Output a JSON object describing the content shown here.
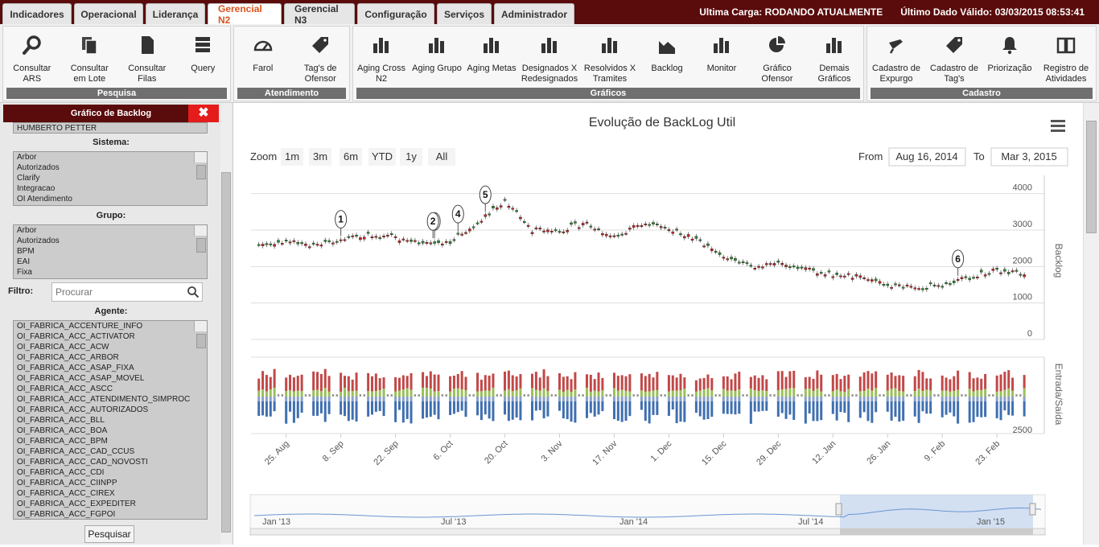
{
  "tabs": [
    "Indicadores",
    "Operacional",
    "Liderança",
    "Gerencial N2",
    "Gerencial N3",
    "Configuração",
    "Serviços",
    "Administrador"
  ],
  "status": {
    "carga": "Ultima Carga: RODANDO ATUALMENTE",
    "valido": "Último Dado Válido: 03/03/2015 08:53:41"
  },
  "ribbon": {
    "pesquisa": {
      "label": "Pesquisa",
      "items": [
        "Consultar ARS",
        "Consultar em Lote",
        "Consultar Filas",
        "Query"
      ]
    },
    "atendimento": {
      "label": "Atendimento",
      "items": [
        "Farol",
        "Tag's de Ofensor"
      ]
    },
    "graficos": {
      "label": "Gráficos",
      "items": [
        "Aging Cross N2",
        "Aging Grupo",
        "Aging Metas",
        "Designados X Redesignados",
        "Resolvidos X Tramites",
        "Backlog",
        "Monitor",
        "Gráfico Ofensor",
        "Demais Gráficos"
      ]
    },
    "cadastro": {
      "label": "Cadastro",
      "items": [
        "Cadastro de Expurgo",
        "Cadastro de Tag's",
        "Priorização",
        "Registro de Atividades"
      ]
    }
  },
  "left": {
    "title": "Gráfico de Backlog",
    "close": "✖",
    "top_item": "HUMBERTO PETTER",
    "sistema_label": "Sistema:",
    "sistema": [
      "Arbor",
      "Autorizados",
      "Clarify",
      "Integracao",
      "OI Atendimento"
    ],
    "grupo_label": "Grupo:",
    "grupo": [
      "Arbor",
      "Autorizados",
      "BPM",
      "EAI",
      "Fixa"
    ],
    "filtro_label": "Filtro:",
    "search_placeholder": "Procurar",
    "agente_label": "Agente:",
    "agente": [
      "OI_FABRICA_ACCENTURE_INFO",
      "OI_FABRICA_ACC_ACTIVATOR",
      "OI_FABRICA_ACC_ACW",
      "OI_FABRICA_ACC_ARBOR",
      "OI_FABRICA_ACC_ASAP_FIXA",
      "OI_FABRICA_ACC_ASAP_MOVEL",
      "OI_FABRICA_ACC_ASCC",
      "OI_FABRICA_ACC_ATENDIMENTO_SIMPROC",
      "OI_FABRICA_ACC_AUTORIZADOS",
      "OI_FABRICA_ACC_BLL",
      "OI_FABRICA_ACC_BOA",
      "OI_FABRICA_ACC_BPM",
      "OI_FABRICA_ACC_CAD_CCUS",
      "OI_FABRICA_ACC_CAD_NOVOSTI",
      "OI_FABRICA_ACC_CDI",
      "OI_FABRICA_ACC_CIINPP",
      "OI_FABRICA_ACC_CIREX",
      "OI_FABRICA_ACC_EXPEDITER",
      "OI_FABRICA_ACC_FGPOI"
    ],
    "pesquisar": "Pesquisar"
  },
  "chart_data": {
    "type": "line",
    "title": "Evolução de BackLog Util",
    "zoom_label": "Zoom",
    "zoom_buttons": [
      "1m",
      "3m",
      "6m",
      "YTD",
      "1y",
      "All"
    ],
    "from_label": "From",
    "from": "Aug 16, 2014",
    "to_label": "To",
    "to": "Mar 3, 2015",
    "ylabel": "Backlog",
    "ylabel2": "Entrada/Saída",
    "yticks": [
      0,
      1000,
      2000,
      3000,
      4000
    ],
    "yticks2": [
      2500
    ],
    "ylim": [
      0,
      4500
    ],
    "xticks": [
      "25. Aug",
      "8. Sep",
      "22. Sep",
      "6. Oct",
      "20. Oct",
      "3. Nov",
      "17. Nov",
      "1. Dec",
      "15. Dec",
      "29. Dec",
      "12. Jan",
      "26. Jan",
      "9. Feb",
      "23. Feb"
    ],
    "flags": [
      "1",
      "2",
      "2",
      "4",
      "5",
      "6"
    ],
    "navigator_labels": [
      "Jan '13",
      "Jul '13",
      "Jan '14",
      "Jul '14",
      "Jan '15"
    ],
    "x": [
      "2014-08-18",
      "2014-08-25",
      "2014-09-01",
      "2014-09-08",
      "2014-09-15",
      "2014-09-22",
      "2014-09-29",
      "2014-10-06",
      "2014-10-13",
      "2014-10-20",
      "2014-10-27",
      "2014-11-03",
      "2014-11-10",
      "2014-11-17",
      "2014-11-24",
      "2014-12-01",
      "2014-12-08",
      "2014-12-15",
      "2014-12-22",
      "2014-12-29",
      "2015-01-05",
      "2015-01-12",
      "2015-01-19",
      "2015-01-26",
      "2015-02-02",
      "2015-02-09",
      "2015-02-16",
      "2015-02-23",
      "2015-03-02"
    ],
    "values": [
      2600,
      2700,
      2600,
      2700,
      2900,
      2800,
      2600,
      2700,
      3200,
      3800,
      3000,
      3000,
      3200,
      2800,
      3200,
      3000,
      2800,
      2200,
      2000,
      2100,
      1900,
      1800,
      1700,
      1500,
      1400,
      1500,
      1700,
      1900,
      1800
    ]
  }
}
